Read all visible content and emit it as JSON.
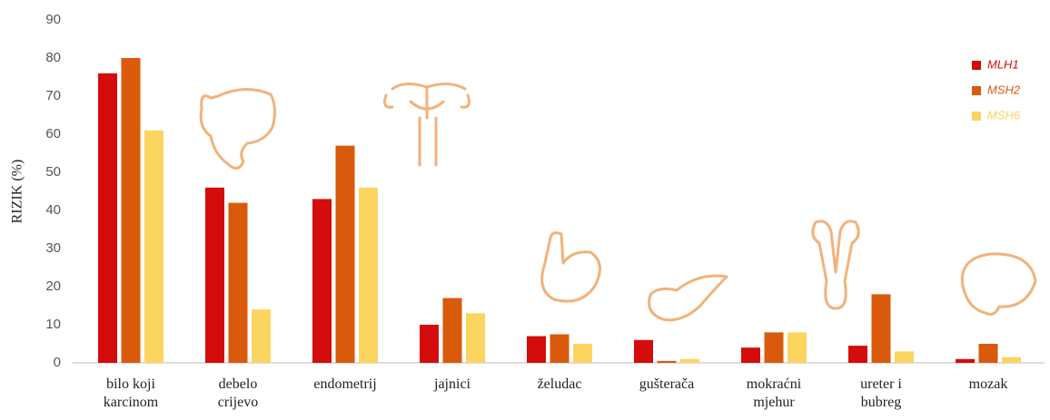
{
  "chart_data": {
    "type": "bar",
    "y_label": "RIZIK (%)",
    "categories": [
      "bilo koji karcinom",
      "debelo crijevo",
      "endometrij",
      "jajnici",
      "želudac",
      "gušterača",
      "mokraćni mjehur",
      "ureter i bubreg",
      "mozak"
    ],
    "series": [
      {
        "name": "MLH1",
        "color": "#d40c0c",
        "values": [
          76,
          46,
          43,
          10,
          7,
          6,
          4,
          4.5,
          1
        ]
      },
      {
        "name": "MSH2",
        "color": "#d95a0b",
        "values": [
          80,
          42,
          57,
          17,
          7.5,
          0.5,
          8,
          18,
          5
        ]
      },
      {
        "name": "MSH6",
        "color": "#fcd460",
        "values": [
          61,
          14,
          46,
          13,
          5,
          1,
          8,
          3,
          1.5
        ]
      }
    ],
    "ylim": [
      0,
      90
    ],
    "yticks": [
      0,
      10,
      20,
      30,
      40,
      50,
      60,
      70,
      80,
      90
    ],
    "grid": false
  }
}
